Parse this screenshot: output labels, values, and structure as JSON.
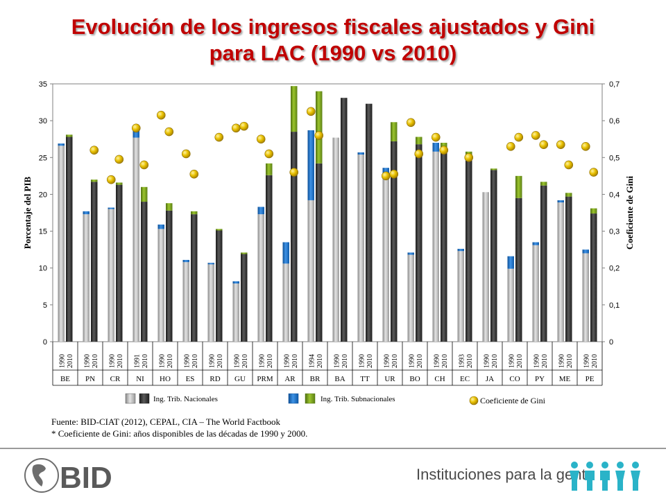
{
  "title_line1": "Evolución de los ingresos fiscales ajustados y Gini",
  "title_line2": "para LAC (1990 vs 2010)",
  "source_line1": "Fuente: BID-CIAT (2012), CEPAL, CIA – The World Factbook",
  "source_line2": "* Coeficiente de Gini: años disponibles de las décadas de 1990 y 2000.",
  "logo_text": "BID",
  "tagline": "Instituciones para la gente",
  "colors": {
    "nacional_1990": "#b0b0b0",
    "nacional_2010": "#2e2e2e",
    "subnacional": "#1a6fc4",
    "subnacional_2010_dark": "#1a5aa0",
    "green": "#7aa21d",
    "gini": "#e0b400",
    "title": "#c00000"
  },
  "chart_data": {
    "type": "bar",
    "ylabel": "Porcentaje del PIB",
    "y2label": "Coeficiente de Gini",
    "ylim": [
      0,
      35
    ],
    "y2lim": [
      0,
      0.7
    ],
    "yticks": [
      "0",
      "5",
      "10",
      "15",
      "20",
      "25",
      "30",
      "35"
    ],
    "y2ticks": [
      "0",
      "0,1",
      "0,2",
      "0,3",
      "0,4",
      "0,5",
      "0,6",
      "0,7"
    ],
    "grid": false,
    "legend": [
      {
        "label": "Ing. Trib. Nacionales",
        "key": "nacional"
      },
      {
        "label": "Ing. Trib. Subnacionales",
        "key": "subnacional"
      },
      {
        "label": "Coeficiente de Gini",
        "key": "gini"
      }
    ],
    "countries": [
      {
        "code": "BE",
        "years": [
          "1990",
          "2010"
        ],
        "nat": [
          26.6,
          27.8
        ],
        "sub": [
          0.3,
          0.0
        ],
        "green": [
          0,
          0.3
        ],
        "gini": [
          null,
          null
        ]
      },
      {
        "code": "PN",
        "years": [
          "1990",
          "2010"
        ],
        "nat": [
          17.3,
          21.7
        ],
        "sub": [
          0.4,
          0.0
        ],
        "green": [
          0,
          0.3
        ],
        "gini": [
          null,
          0.52
        ]
      },
      {
        "code": "CR",
        "years": [
          "1990",
          "2010"
        ],
        "nat": [
          18.0,
          21.3
        ],
        "sub": [
          0.2,
          0.0
        ],
        "green": [
          0,
          0.3
        ],
        "gini": [
          0.44,
          0.495
        ]
      },
      {
        "code": "NI",
        "years": [
          "1991",
          "2010"
        ],
        "nat": [
          27.7,
          19.0
        ],
        "sub": [
          1.0,
          0.0
        ],
        "green": [
          0,
          2.0
        ],
        "gini": [
          0.58,
          0.48
        ]
      },
      {
        "code": "HO",
        "years": [
          "1990",
          "2010"
        ],
        "nat": [
          15.3,
          17.8
        ],
        "sub": [
          0.6,
          0.0
        ],
        "green": [
          0,
          1.0
        ],
        "gini": [
          0.615,
          0.57
        ]
      },
      {
        "code": "ES",
        "years": [
          "1990",
          "2010"
        ],
        "nat": [
          10.8,
          17.3
        ],
        "sub": [
          0.3,
          0.0
        ],
        "green": [
          0,
          0.4
        ],
        "gini": [
          0.51,
          0.455
        ]
      },
      {
        "code": "RD",
        "years": [
          "1990",
          "2010"
        ],
        "nat": [
          10.5,
          15.1
        ],
        "sub": [
          0.2,
          0.0
        ],
        "green": [
          0,
          0.2
        ],
        "gini": [
          null,
          0.555
        ]
      },
      {
        "code": "GU",
        "years": [
          "1990",
          "2010"
        ],
        "nat": [
          7.9,
          11.9
        ],
        "sub": [
          0.3,
          0.0
        ],
        "green": [
          0,
          0.2
        ],
        "gini": [
          0.58,
          0.585
        ]
      },
      {
        "code": "PRM",
        "years": [
          "1990",
          "2010"
        ],
        "nat": [
          17.3,
          22.6
        ],
        "sub": [
          1.0,
          0.0
        ],
        "green": [
          0,
          1.6
        ],
        "gini": [
          0.55,
          0.51
        ]
      },
      {
        "code": "AR",
        "years": [
          "1990",
          "2010"
        ],
        "nat": [
          10.6,
          28.5
        ],
        "sub": [
          2.9,
          0.0
        ],
        "green": [
          0,
          6.2
        ],
        "gini": [
          null,
          0.46
        ]
      },
      {
        "code": "BR",
        "years": [
          "1994",
          "2010"
        ],
        "nat": [
          19.2,
          24.2
        ],
        "sub": [
          9.5,
          0.0
        ],
        "green": [
          0,
          9.8
        ],
        "gini": [
          0.625,
          0.56
        ]
      },
      {
        "code": "BA",
        "years": [
          "1990",
          "2010"
        ],
        "nat": [
          27.7,
          33.1
        ],
        "sub": [
          0.0,
          0.0
        ],
        "green": [
          0,
          0.0
        ],
        "gini": [
          null,
          null
        ]
      },
      {
        "code": "TT",
        "years": [
          "1990",
          "2010"
        ],
        "nat": [
          25.4,
          32.3
        ],
        "sub": [
          0.3,
          0.0
        ],
        "green": [
          0,
          0.0
        ],
        "gini": [
          null,
          null
        ]
      },
      {
        "code": "UR",
        "years": [
          "1990",
          "2010"
        ],
        "nat": [
          22.6,
          27.2
        ],
        "sub": [
          1.0,
          0.0
        ],
        "green": [
          0,
          2.6
        ],
        "gini": [
          0.45,
          0.455
        ]
      },
      {
        "code": "BO",
        "years": [
          "1990",
          "2010"
        ],
        "nat": [
          11.8,
          26.8
        ],
        "sub": [
          0.3,
          0.0
        ],
        "green": [
          0,
          1.0
        ],
        "gini": [
          0.595,
          0.51
        ]
      },
      {
        "code": "CH",
        "years": [
          "1990",
          "2010"
        ],
        "nat": [
          25.8,
          26.2
        ],
        "sub": [
          1.2,
          0.0
        ],
        "green": [
          0,
          0.8
        ],
        "gini": [
          0.555,
          0.52
        ]
      },
      {
        "code": "EC",
        "years": [
          "1993",
          "2010"
        ],
        "nat": [
          12.3,
          25.4
        ],
        "sub": [
          0.3,
          0.0
        ],
        "green": [
          0,
          0.4
        ],
        "gini": [
          null,
          0.5
        ]
      },
      {
        "code": "JA",
        "years": [
          "1990",
          "2010"
        ],
        "nat": [
          20.3,
          23.3
        ],
        "sub": [
          0.0,
          0.0
        ],
        "green": [
          0,
          0.2
        ],
        "gini": [
          null,
          null
        ]
      },
      {
        "code": "CO",
        "years": [
          "1990",
          "2010"
        ],
        "nat": [
          9.9,
          19.5
        ],
        "sub": [
          1.7,
          0.0
        ],
        "green": [
          0,
          3.0
        ],
        "gini": [
          0.53,
          0.555
        ]
      },
      {
        "code": "PY",
        "years": [
          "1990",
          "2010"
        ],
        "nat": [
          13.1,
          21.2
        ],
        "sub": [
          0.4,
          0.0
        ],
        "green": [
          0,
          0.5
        ],
        "gini": [
          0.56,
          0.535
        ]
      },
      {
        "code": "ME",
        "years": [
          "1990",
          "2010"
        ],
        "nat": [
          18.9,
          19.7
        ],
        "sub": [
          0.3,
          0.0
        ],
        "green": [
          0,
          0.5
        ],
        "gini": [
          0.535,
          0.48
        ]
      },
      {
        "code": "PE",
        "years": [
          "1990",
          "2010"
        ],
        "nat": [
          12.0,
          17.4
        ],
        "sub": [
          0.5,
          0.0
        ],
        "green": [
          0,
          0.7
        ],
        "gini": [
          0.53,
          0.46
        ]
      }
    ]
  }
}
